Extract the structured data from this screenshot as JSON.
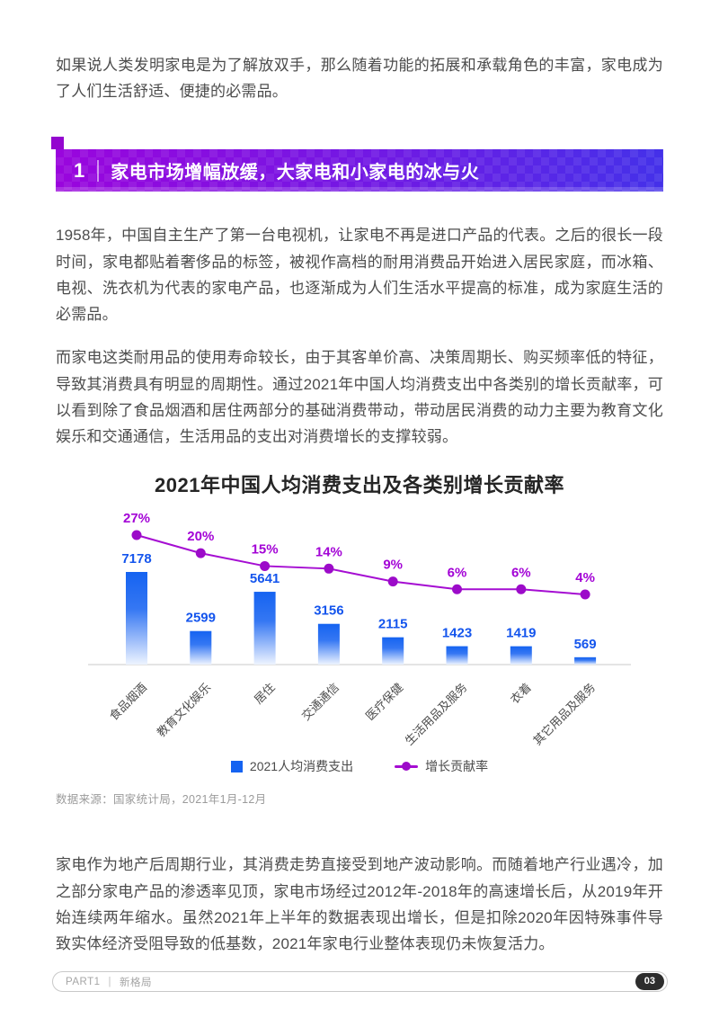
{
  "paragraphs": {
    "intro": "如果说人类发明家电是为了解放双手，那么随着功能的拓展和承载角色的丰富，家电成为了人们生活舒适、便捷的必需品。",
    "history": "1958年，中国自主生产了第一台电视机，让家电不再是进口产品的代表。之后的很长一段时间，家电都贴着奢侈品的标签，被视作高档的耐用消费品开始进入居民家庭，而冰箱、电视、洗衣机为代表的家电产品，也逐渐成为人们生活水平提高的标准，成为家庭生活的必需品。",
    "cycle": "而家电这类耐用品的使用寿命较长，由于其客单价高、决策周期长、购买频率低的特征，导致其消费具有明显的周期性。通过2021年中国人均消费支出中各类别的增长贡献率，可以看到除了食品烟酒和居住两部分的基础消费带动，带动居民消费的动力主要为教育文化娱乐和交通通信，生活用品的支出对消费增长的支撑较弱。",
    "market": "家电作为地产后周期行业，其消费走势直接受到地产波动影响。而随着地产行业遇冷，加之部分家电产品的渗透率见顶，家电市场经过2012年-2018年的高速增长后，从2019年开始连续两年缩水。虽然2021年上半年的数据表现出增长，但是扣除2020年因特殊事件导致实体经济受阻导致的低基数，2021年家电行业整体表现仍未恢复活力。"
  },
  "section_banner": {
    "number": "1",
    "title": "家电市场增幅放缓，大家电和小家电的冰与火"
  },
  "chart_data": {
    "type": "bar",
    "subtype": "bar-line-combo",
    "title": "2021年中国人均消费支出及各类别增长贡献率",
    "categories": [
      "食品烟酒",
      "教育文化娱乐",
      "居住",
      "交通通信",
      "医疗保健",
      "生活用品及服务",
      "衣着",
      "其它用品及服务"
    ],
    "series": [
      {
        "name": "2021人均消费支出",
        "type": "bar",
        "values": [
          7178,
          2599,
          5641,
          3156,
          2115,
          1423,
          1419,
          569
        ],
        "color": "#1563f1"
      },
      {
        "name": "增长贡献率",
        "type": "line",
        "values": [
          27,
          20,
          15,
          14,
          9,
          6,
          6,
          4
        ],
        "unit": "%",
        "color": "#a50dd2"
      }
    ],
    "legend_position": "bottom",
    "grid": false,
    "bar_max": 7178
  },
  "source_note": "数据来源：国家统计局，2021年1月-12月",
  "footer": {
    "part": "PART1",
    "divider": "|",
    "section": "新格局",
    "page_number": "03"
  },
  "colors": {
    "bar_blue": "#1563f1",
    "bar_value_label": "#1455ed",
    "line_purple": "#a50dd2",
    "marker_purple": "#9c0bc9",
    "pct_label": "#a303d6",
    "banner_gradient_left": "#9a05dd",
    "banner_gradient_right": "#4431e9",
    "corner_square": "#9406cf",
    "body_text": "#4c4c4c",
    "axis_gray": "#dcdcdc"
  }
}
